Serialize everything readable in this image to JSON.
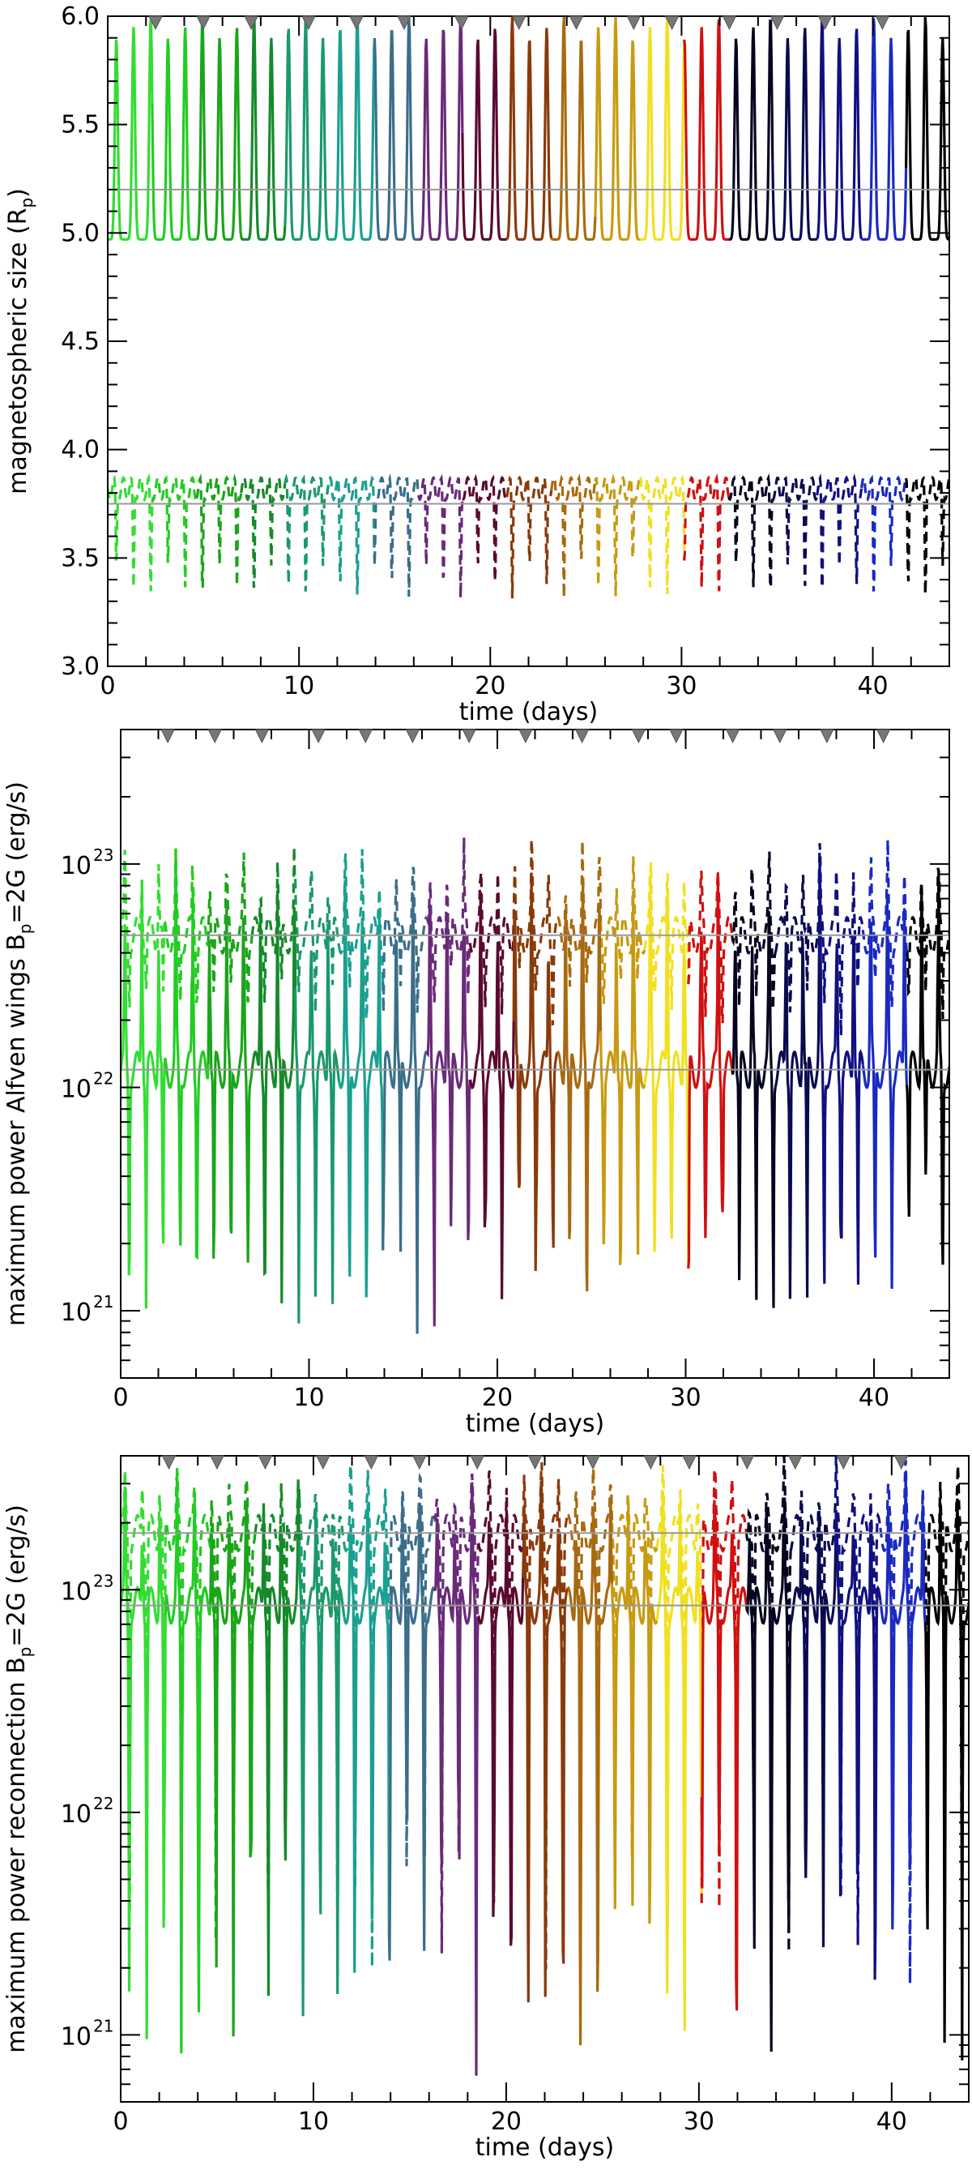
{
  "chart_data": [
    {
      "type": "line",
      "panel": "top",
      "title": "",
      "xlabel": "time (days)",
      "ylabel": "magnetospheric size (R_p)",
      "ylabel_main": "magnetospheric size (R",
      "ylabel_sub": "p",
      "ylabel_tail": ")",
      "xlim": [
        0,
        44
      ],
      "ylim": [
        3.0,
        6.0
      ],
      "yscale": "linear",
      "x_ticks": [
        0,
        10,
        20,
        30,
        40
      ],
      "x_tick_labels": [
        "0",
        "10",
        "20",
        "30",
        "40"
      ],
      "y_ticks": [
        3.0,
        3.5,
        4.0,
        4.5,
        5.0,
        5.5,
        6.0
      ],
      "y_tick_labels": [
        "3.0",
        "3.5",
        "4.0",
        "4.5",
        "5.0",
        "5.5",
        "6.0"
      ],
      "grid": false,
      "reference_lines": [
        5.2,
        3.75
      ],
      "series": [
        {
          "style": "solid",
          "peak_values": [
            5.9,
            5.95,
            6.0
          ],
          "trough_value": 4.97,
          "period_days": 0.9,
          "mean": 5.2
        },
        {
          "style": "dashed",
          "upper_value": 3.82,
          "lower_values": [
            3.45,
            3.35,
            3.3
          ],
          "period_days": 0.9,
          "mean": 3.75
        }
      ],
      "orbit_markers_days": [
        2.5,
        5,
        7.5,
        10.5,
        13,
        15.5,
        18.5,
        21.5,
        24.5,
        27.5,
        29.5,
        32.5,
        35,
        37.5,
        40.5
      ]
    },
    {
      "type": "line",
      "panel": "middle",
      "title": "",
      "xlabel": "time (days)",
      "ylabel": "maximum power Alfven wings B_p=2G (erg/s)",
      "ylabel_main": "maximum power Alfven wings B",
      "ylabel_sub": "p",
      "ylabel_tail": "=2G (erg/s)",
      "xlim": [
        0,
        44
      ],
      "ylim": [
        5e+20,
        4e+23
      ],
      "yscale": "log",
      "x_ticks": [
        0,
        10,
        20,
        30,
        40
      ],
      "x_tick_labels": [
        "0",
        "10",
        "20",
        "30",
        "40"
      ],
      "y_ticks": [
        1e+21,
        1e+22,
        1e+23
      ],
      "y_tick_labels": [
        {
          "base": "10",
          "exp": "21"
        },
        {
          "base": "10",
          "exp": "22"
        },
        {
          "base": "10",
          "exp": "23"
        }
      ],
      "grid": false,
      "reference_lines": [
        4.8e+22,
        1.2e+22
      ],
      "series": [
        {
          "style": "dashed",
          "mean": 4.8e+22,
          "max": 1.2e+23,
          "min": 2e+22
        },
        {
          "style": "solid",
          "mean": 1.2e+22,
          "max": 1e+23,
          "min": 8e+20
        }
      ],
      "orbit_markers_days": [
        2.5,
        5,
        7.5,
        10.5,
        13,
        15.5,
        18.5,
        21.5,
        24.5,
        27.5,
        29.5,
        32.5,
        35,
        37.5,
        40.5
      ]
    },
    {
      "type": "line",
      "panel": "bottom",
      "title": "",
      "xlabel": "time (days)",
      "ylabel": "maximum power reconnection B_p=2G (erg/s)",
      "ylabel_main": "maximum power reconnection B",
      "ylabel_sub": "p",
      "ylabel_tail": "=2G (erg/s)",
      "xlim": [
        0,
        44
      ],
      "ylim": [
        5e+20,
        4e+23
      ],
      "yscale": "log",
      "x_ticks": [
        0,
        10,
        20,
        30,
        40
      ],
      "x_tick_labels": [
        "0",
        "10",
        "20",
        "30",
        "40"
      ],
      "y_ticks": [
        1e+21,
        1e+22,
        1e+23
      ],
      "y_tick_labels": [
        {
          "base": "10",
          "exp": "21"
        },
        {
          "base": "10",
          "exp": "22"
        },
        {
          "base": "10",
          "exp": "23"
        }
      ],
      "grid": false,
      "reference_lines": [
        1.8e+23,
        8.5e+22
      ],
      "series": [
        {
          "style": "dashed",
          "mean": 1.8e+23,
          "max": 3.5e+23,
          "min": 1.4e+21
        },
        {
          "style": "solid",
          "mean": 8.5e+22,
          "max": 3e+23,
          "min": 6e+20
        }
      ],
      "orbit_markers_days": [
        2.5,
        5,
        7.5,
        10.5,
        13,
        15.5,
        18.5,
        21.5,
        24.5,
        27.5,
        29.5,
        32.5,
        35,
        37.5,
        40.5
      ]
    }
  ],
  "colors": {
    "segments": [
      "#33dd33",
      "#22cc22",
      "#1aa51a",
      "#158a2a",
      "#1a9a6a",
      "#1aa090",
      "#3a6e8a",
      "#6a2a7a",
      "#5a0a30",
      "#8a3a0a",
      "#a86a10",
      "#c89a10",
      "#f0e020",
      "#d01010",
      "#050520",
      "#0a0a50",
      "#101080",
      "#1a2ac0",
      "#000000"
    ],
    "reference_line": "#999999",
    "marker": "#777777"
  }
}
